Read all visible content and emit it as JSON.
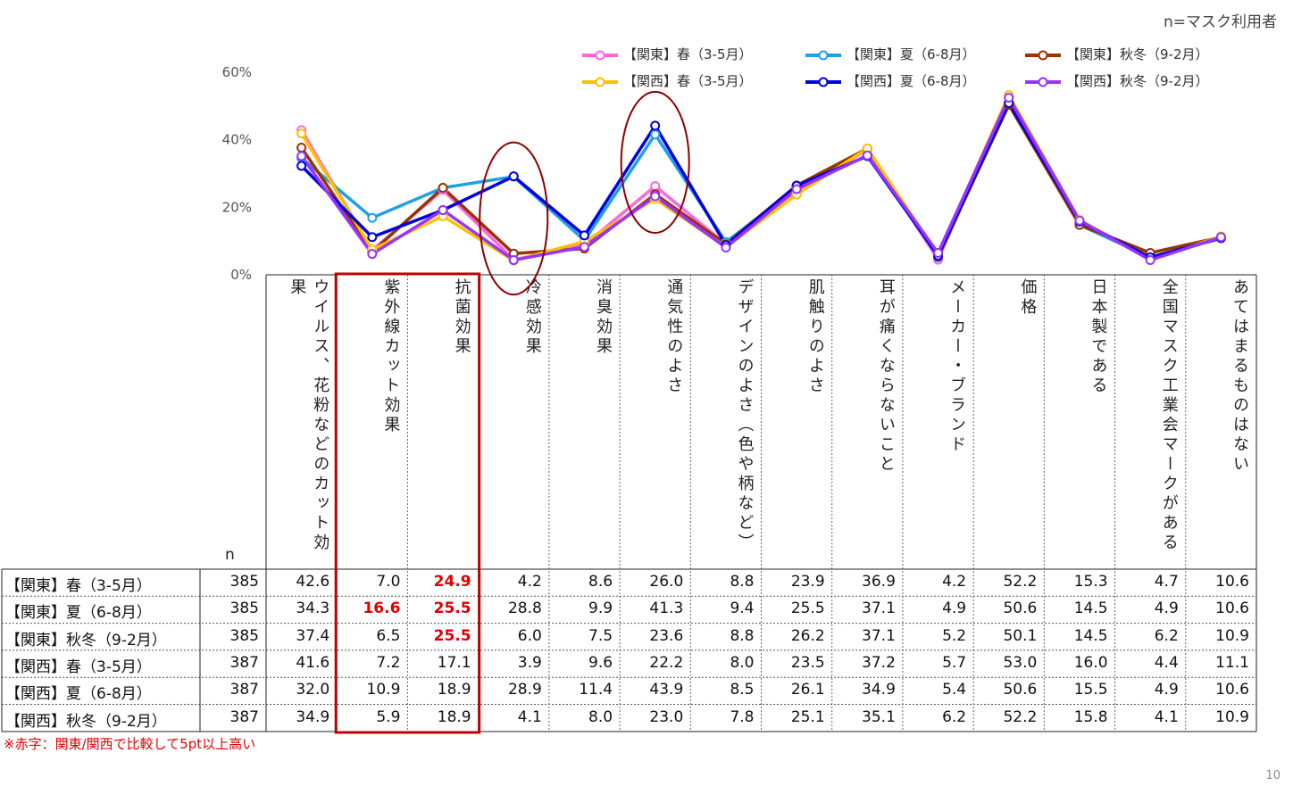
{
  "note": "n=マスク利用者",
  "n_label": "n",
  "footnote": "※赤字：関東/関西で比較して5pt以上高い",
  "page_number": "10",
  "chart_data": {
    "type": "line",
    "ylim": [
      0,
      60
    ],
    "yticks": [
      "0%",
      "20%",
      "40%",
      "60%"
    ],
    "grid": false,
    "legend_position": "top-right",
    "categories": [
      "ウイルス、花粉などのカット効果",
      "紫外線カット効果",
      "抗菌効果",
      "冷感効果",
      "消臭効果",
      "通気性のよさ",
      "デザインのよさ（色や柄など）",
      "肌触りのよさ",
      "耳が痛くならないこと",
      "メーカー・ブランド",
      "価格",
      "日本製である",
      "全国マスク工業会マークがある",
      "あてはまるものはない"
    ],
    "series": [
      {
        "name": "【関東】春（3-5月）",
        "color": "#ff66e0",
        "n": "385",
        "values": [
          42.6,
          7.0,
          24.9,
          4.2,
          8.6,
          26.0,
          8.8,
          23.9,
          36.9,
          4.2,
          52.2,
          15.3,
          4.7,
          10.6
        ]
      },
      {
        "name": "【関東】夏（6-8月）",
        "color": "#1ea0e8",
        "n": "385",
        "values": [
          34.3,
          16.6,
          25.5,
          28.8,
          9.9,
          41.3,
          9.4,
          25.5,
          37.1,
          4.9,
          50.6,
          14.5,
          4.9,
          10.6
        ]
      },
      {
        "name": "【関東】秋冬（9-2月）",
        "color": "#993300",
        "n": "385",
        "values": [
          37.4,
          6.5,
          25.5,
          6.0,
          7.5,
          23.6,
          8.8,
          26.2,
          37.1,
          5.2,
          50.1,
          14.5,
          6.2,
          10.9
        ]
      },
      {
        "name": "【関西】春（3-5月）",
        "color": "#ffc000",
        "n": "387",
        "values": [
          41.6,
          7.2,
          17.1,
          3.9,
          9.6,
          22.2,
          8.0,
          23.5,
          37.2,
          5.7,
          53.0,
          16.0,
          4.4,
          11.1
        ]
      },
      {
        "name": "【関西】夏（6-8月）",
        "color": "#0000e0",
        "n": "387",
        "values": [
          32.0,
          10.9,
          18.9,
          28.9,
          11.4,
          43.9,
          8.5,
          26.1,
          34.9,
          5.4,
          50.6,
          15.5,
          4.9,
          10.6
        ]
      },
      {
        "name": "【関西】秋冬（9-2月）",
        "color": "#9933ff",
        "n": "387",
        "values": [
          34.9,
          5.9,
          18.9,
          4.1,
          8.0,
          23.0,
          7.8,
          25.1,
          35.1,
          6.2,
          52.2,
          15.8,
          4.1,
          10.9
        ]
      }
    ],
    "table_display": [
      [
        "42.6",
        "7.0",
        "24.9",
        "4.2",
        "8.6",
        "26.0",
        "8.8",
        "23.9",
        "36.9",
        "4.2",
        "52.2",
        "15.3",
        "4.7",
        "10.6"
      ],
      [
        "34.3",
        "16.6",
        "25.5",
        "28.8",
        "9.9",
        "41.3",
        "9.4",
        "25.5",
        "37.1",
        "4.9",
        "50.6",
        "14.5",
        "4.9",
        "10.6"
      ],
      [
        "37.4",
        "6.5",
        "25.5",
        "6.0",
        "7.5",
        "23.6",
        "8.8",
        "26.2",
        "37.1",
        "5.2",
        "50.1",
        "14.5",
        "6.2",
        "10.9"
      ],
      [
        "41.6",
        "7.2",
        "17.1",
        "3.9",
        "9.6",
        "22.2",
        "8.0",
        "23.5",
        "37.2",
        "5.7",
        "53.0",
        "16.0",
        "4.4",
        "11.1"
      ],
      [
        "32.0",
        "10.9",
        "18.9",
        "28.9",
        "11.4",
        "43.9",
        "8.5",
        "26.1",
        "34.9",
        "5.4",
        "50.6",
        "15.5",
        "4.9",
        "10.6"
      ],
      [
        "34.9",
        "5.9",
        "18.9",
        "4.1",
        "8.0",
        "23.0",
        "7.8",
        "25.1",
        "35.1",
        "6.2",
        "52.2",
        "15.8",
        "4.1",
        "10.9"
      ]
    ],
    "highlighted_cells": [
      [
        0,
        2
      ],
      [
        1,
        1
      ],
      [
        1,
        2
      ],
      [
        2,
        2
      ]
    ],
    "highlight_color": "#e00000",
    "box_color": "#c00000",
    "ellipse_color": "#8b0000"
  }
}
